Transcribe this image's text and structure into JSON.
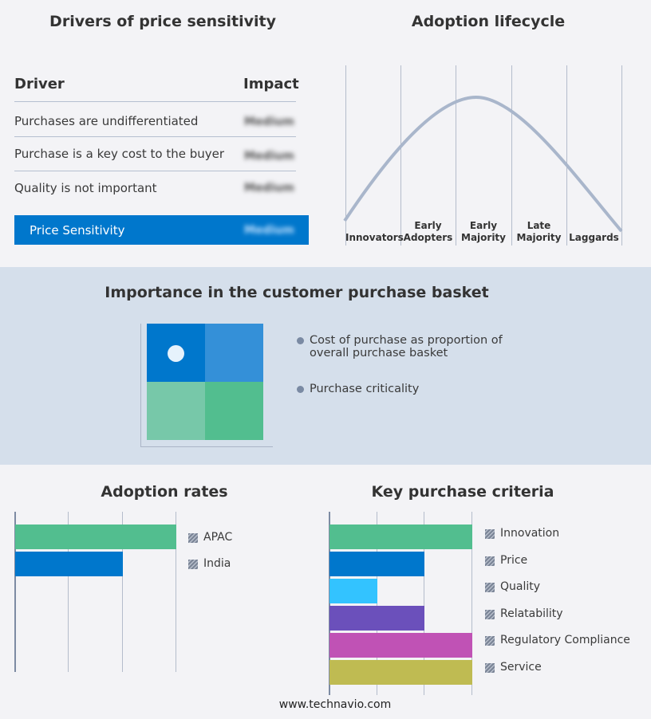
{
  "price_sensitivity": {
    "title": "Drivers of price sensitivity",
    "header": {
      "driver": "Driver",
      "impact": "Impact"
    },
    "rows": [
      {
        "driver": "Purchases are undifferentiated",
        "impact": "Medium"
      },
      {
        "driver": "Purchase is a key cost to the buyer",
        "impact": "Medium"
      },
      {
        "driver": "Quality is not important",
        "impact": "Medium"
      }
    ],
    "summary": {
      "label": "Price Sensitivity",
      "impact": "Medium",
      "color": "#0077cc"
    }
  },
  "lifecycle": {
    "title": "Adoption lifecycle",
    "stages": [
      {
        "l1": "Innovators",
        "l2": ""
      },
      {
        "l1": "Early",
        "l2": "Adopters"
      },
      {
        "l1": "Early",
        "l2": "Majority"
      },
      {
        "l1": "Late",
        "l2": "Majority"
      },
      {
        "l1": "Laggards",
        "l2": ""
      }
    ],
    "curve_color": "#a9b6cb"
  },
  "basket": {
    "title": "Importance in the customer purchase basket",
    "legend": [
      {
        "l1": "Cost of purchase as proportion of",
        "l2": "overall purchase basket"
      },
      {
        "l1": "Purchase criticality",
        "l2": ""
      }
    ],
    "quadrant_colors": [
      "#0077cc",
      "#3490d8",
      "#77c8a9",
      "#52be8f"
    ],
    "marker_quadrant": "top-left"
  },
  "chart_data": [
    {
      "type": "bar",
      "orientation": "horizontal",
      "title": "Adoption rates",
      "categories": [
        "APAC",
        "India"
      ],
      "values": [
        3,
        2
      ],
      "colors": [
        "#52be8f",
        "#0077cc"
      ],
      "xlim": [
        0,
        3
      ],
      "grid": true,
      "legend": "right"
    },
    {
      "type": "bar",
      "orientation": "horizontal",
      "title": "Key purchase criteria",
      "categories": [
        "Innovation",
        "Price",
        "Quality",
        "Relatability",
        "Regulatory Compliance",
        "Service"
      ],
      "values": [
        3,
        2,
        1,
        2,
        3,
        3
      ],
      "colors": [
        "#52be8f",
        "#0077cc",
        "#33c3ff",
        "#6b50bb",
        "#c052b5",
        "#bfbb52"
      ],
      "xlim": [
        0,
        3
      ],
      "grid": true,
      "legend": "right"
    }
  ],
  "footer": {
    "site": "www.technavio.com"
  }
}
